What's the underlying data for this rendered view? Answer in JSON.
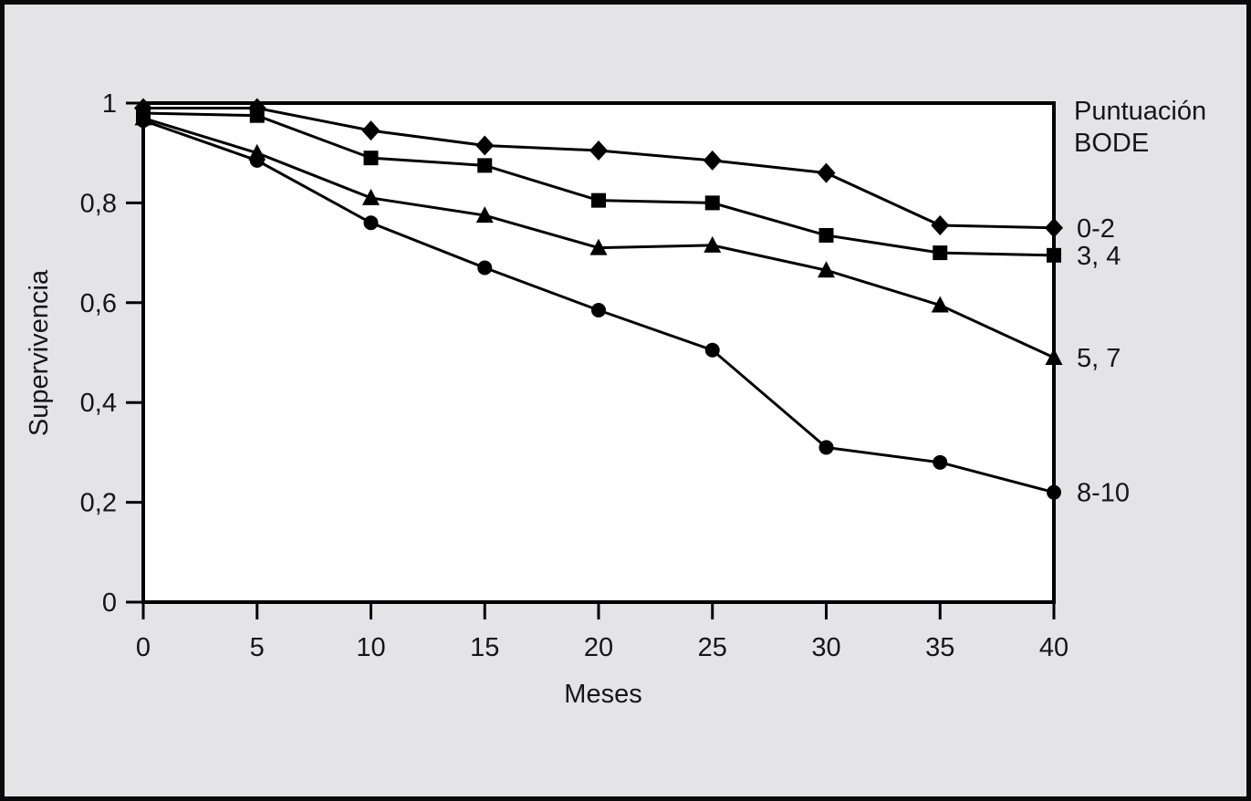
{
  "figure": {
    "background_color": "#e4e4e6",
    "frame_color": "#0a0a0a",
    "plot_background": "#ffffff",
    "axis_color": "#000000",
    "text_color": "#161616"
  },
  "chart_data": {
    "type": "line",
    "title": "",
    "xlabel": "Meses",
    "ylabel": "Supervivencia",
    "xlim": [
      0,
      40
    ],
    "ylim": [
      0,
      1
    ],
    "x_ticks": [
      0,
      5,
      10,
      15,
      20,
      25,
      30,
      35,
      40
    ],
    "x_tick_labels": [
      "0",
      "5",
      "10",
      "15",
      "20",
      "25",
      "30",
      "35",
      "40"
    ],
    "y_ticks": [
      0,
      0.2,
      0.4,
      0.6,
      0.8,
      1
    ],
    "y_tick_labels": [
      "0",
      "0,2",
      "0,4",
      "0,6",
      "0,8",
      "1"
    ],
    "grid": false,
    "legend_title_lines": [
      "Puntuación",
      "BODE"
    ],
    "legend_position": "right-outside",
    "x": [
      0,
      5,
      10,
      15,
      20,
      25,
      30,
      35,
      40
    ],
    "series": [
      {
        "name": "0-2",
        "marker": "diamond",
        "color": "#000000",
        "values": [
          0.99,
          0.99,
          0.945,
          0.915,
          0.905,
          0.885,
          0.86,
          0.755,
          0.75
        ]
      },
      {
        "name": "3, 4",
        "marker": "square",
        "color": "#000000",
        "values": [
          0.98,
          0.975,
          0.89,
          0.875,
          0.805,
          0.8,
          0.735,
          0.7,
          0.695
        ]
      },
      {
        "name": "5, 7",
        "marker": "triangle",
        "color": "#000000",
        "values": [
          0.97,
          0.9,
          0.81,
          0.775,
          0.71,
          0.715,
          0.665,
          0.595,
          0.49
        ]
      },
      {
        "name": "8-10",
        "marker": "circle",
        "color": "#000000",
        "values": [
          0.965,
          0.885,
          0.76,
          0.67,
          0.585,
          0.505,
          0.31,
          0.28,
          0.22
        ]
      }
    ]
  }
}
